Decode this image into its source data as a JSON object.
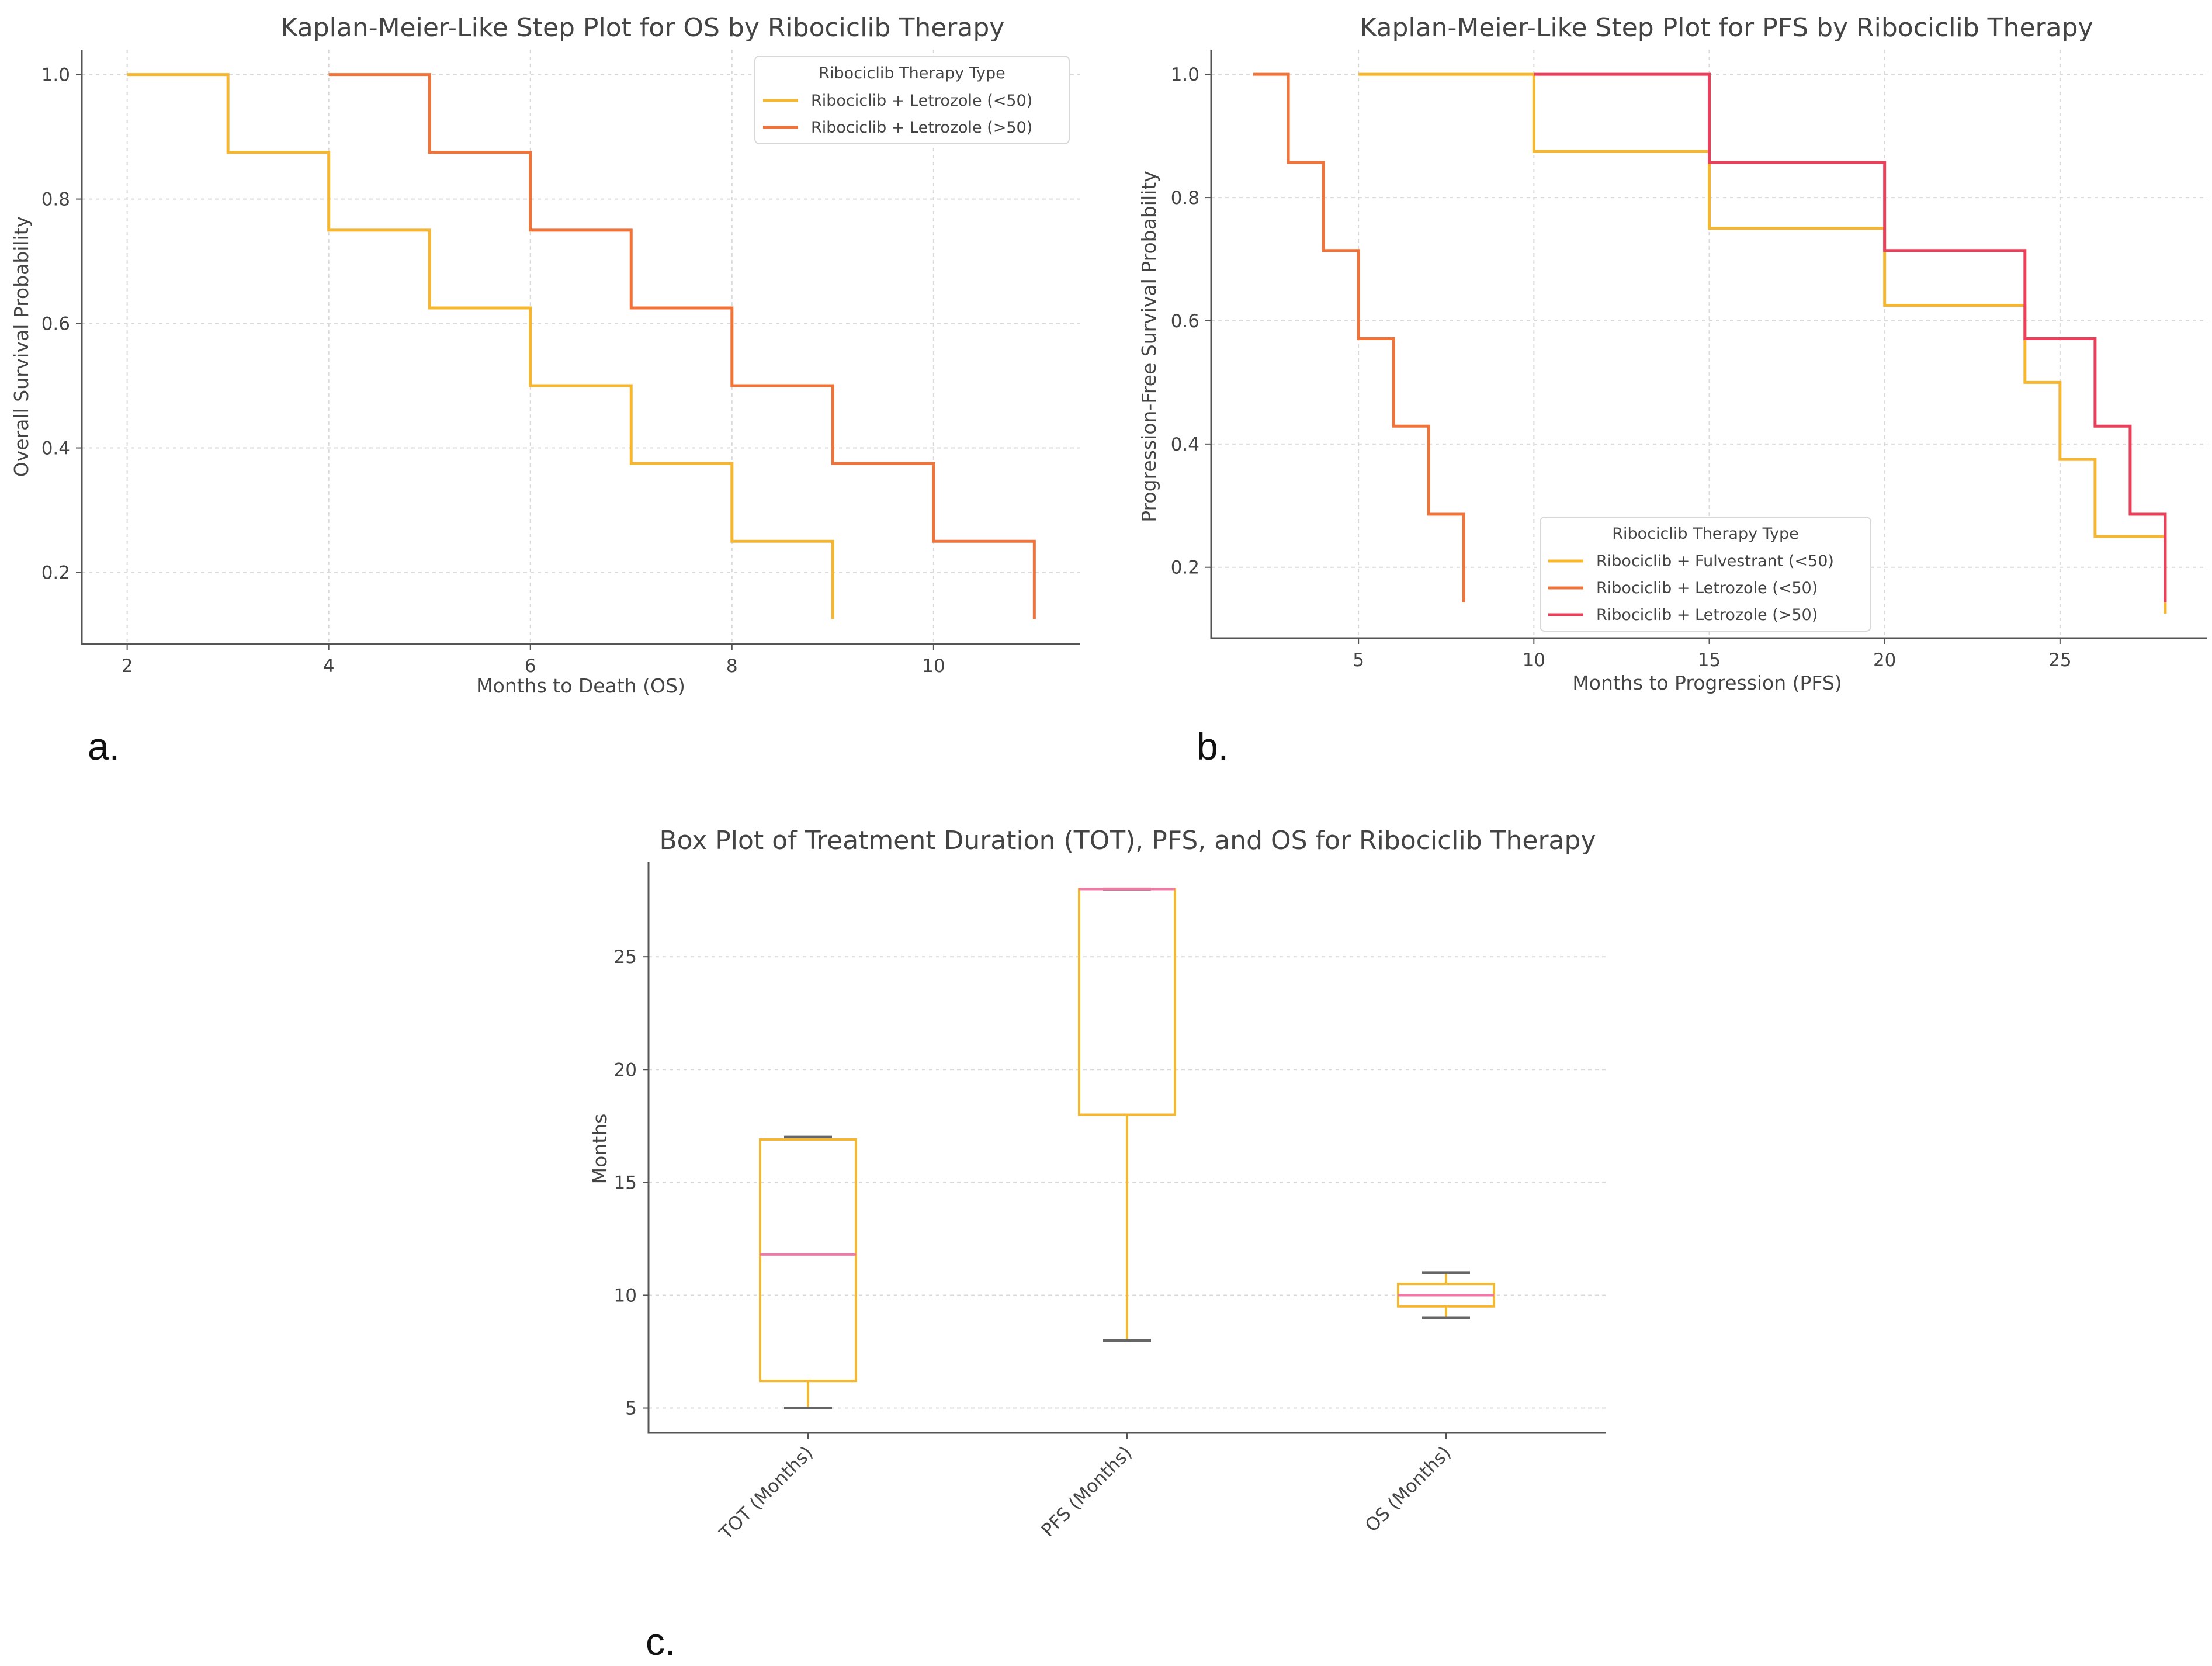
{
  "panel_labels": [
    "a.",
    "b.",
    "c."
  ],
  "chart_data": [
    {
      "type": "line",
      "step": true,
      "title": "Kaplan-Meier-Like Step Plot for OS by Ribociclib Therapy",
      "xlabel": "Months to Death (OS)",
      "ylabel": "Overall Survival Probability",
      "xlim": [
        1.55,
        11.45
      ],
      "ylim": [
        0.085,
        1.04
      ],
      "xticks": [
        2,
        4,
        6,
        8,
        10
      ],
      "yticks": [
        0.2,
        0.4,
        0.6,
        0.8,
        1.0
      ],
      "ytick_labels": [
        "0.2",
        "0.4",
        "0.6",
        "0.8",
        "1.0"
      ],
      "legend": {
        "title": "Ribociclib Therapy Type",
        "location": "upper right"
      },
      "series": [
        {
          "name": "Ribociclib + Letrozole (<50)",
          "color": "#f5b731",
          "x": [
            2,
            3,
            4,
            5,
            6,
            7,
            8,
            9
          ],
          "y": [
            1.0,
            0.875,
            0.75,
            0.625,
            0.5,
            0.375,
            0.25,
            0.125
          ]
        },
        {
          "name": "Ribociclib + Letrozole (>50)",
          "color": "#f0743a",
          "x": [
            4,
            5,
            6,
            7,
            8,
            9,
            10,
            11
          ],
          "y": [
            1.0,
            0.875,
            0.75,
            0.625,
            0.5,
            0.375,
            0.25,
            0.125
          ]
        }
      ]
    },
    {
      "type": "line",
      "step": true,
      "title": "Kaplan-Meier-Like Step Plot for PFS by Ribociclib Therapy",
      "xlabel": "Months to Progression (PFS)",
      "ylabel": "Progression-Free Survival Probability",
      "xlim": [
        0.8,
        29.2
      ],
      "ylim": [
        0.085,
        1.04
      ],
      "xticks": [
        5,
        10,
        15,
        20,
        25
      ],
      "yticks": [
        0.2,
        0.4,
        0.6,
        0.8,
        1.0
      ],
      "ytick_labels": [
        "0.2",
        "0.4",
        "0.6",
        "0.8",
        "1.0"
      ],
      "legend": {
        "title": "Ribociclib Therapy Type",
        "location": "lower center"
      },
      "series": [
        {
          "name": "Ribociclib + Fulvestrant (<50)",
          "color": "#f5b731",
          "x": [
            5,
            10,
            15,
            20,
            24,
            25,
            26,
            28
          ],
          "y": [
            1.0,
            0.875,
            0.75,
            0.625,
            0.5,
            0.375,
            0.25,
            0.125
          ]
        },
        {
          "name": "Ribociclib + Letrozole (<50)",
          "color": "#f0743a",
          "x": [
            2,
            3,
            4,
            5,
            6,
            7,
            8
          ],
          "y": [
            1.0,
            0.857,
            0.714,
            0.571,
            0.429,
            0.286,
            0.143
          ]
        },
        {
          "name": "Ribociclib + Letrozole (>50)",
          "color": "#e8405a",
          "x": [
            10,
            15,
            20,
            24,
            26,
            27,
            28
          ],
          "y": [
            1.0,
            0.857,
            0.714,
            0.571,
            0.429,
            0.286,
            0.143
          ]
        }
      ]
    },
    {
      "type": "box",
      "title": "Box Plot of Treatment Duration (TOT), PFS, and OS for Ribociclib Therapy",
      "xlabel": "",
      "ylabel": "Months",
      "ylim": [
        3.9,
        29.2
      ],
      "yticks": [
        5,
        10,
        15,
        20,
        25
      ],
      "categories": [
        "TOT (Months)",
        "PFS (Months)",
        "OS (Months)"
      ],
      "box_color": "#f5b731",
      "median_color": "#f277a8",
      "whisker_cap_color": "#666666",
      "boxes": [
        {
          "whislo": 5,
          "q1": 6.2,
          "med": 11.8,
          "q3": 16.9,
          "whishi": 17
        },
        {
          "whislo": 8,
          "q1": 18,
          "med": 28,
          "q3": 28,
          "whishi": 28
        },
        {
          "whislo": 9,
          "q1": 9.5,
          "med": 10,
          "q3": 10.5,
          "whishi": 11
        }
      ]
    }
  ]
}
